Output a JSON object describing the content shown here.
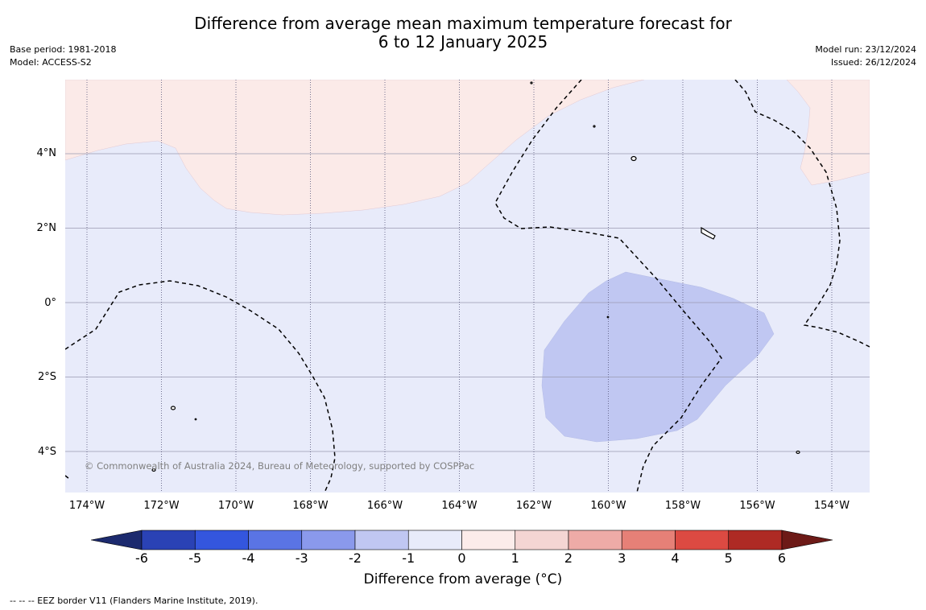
{
  "title": {
    "line1": "Difference from average mean maximum temperature forecast for",
    "line2": "6 to 12 January 2025"
  },
  "meta_left": {
    "base_period": "Base period: 1981-2018",
    "model": "Model: ACCESS-S2"
  },
  "meta_right": {
    "model_run": "Model run: 23/12/2024",
    "issued": "Issued: 26/12/2024"
  },
  "map": {
    "lat_labels": [
      "4°N",
      "2°N",
      "0°",
      "2°S",
      "4°S"
    ],
    "lon_labels": [
      "174°W",
      "172°W",
      "170°W",
      "168°W",
      "166°W",
      "164°W",
      "162°W",
      "160°W",
      "158°W",
      "156°W",
      "154°W"
    ],
    "copyright": "© Commonwealth of Australia 2024, Bureau of Meteorology, supported by COSPPac",
    "colors": {
      "ocean_near_zero": "#e8ebfa",
      "warm_0_1": "#fbeae8",
      "cool_1_2": "#c0c7f2"
    }
  },
  "colorbar": {
    "tick_labels": [
      "-6",
      "-5",
      "-4",
      "-3",
      "-2",
      "-1",
      "0",
      "1",
      "2",
      "3",
      "4",
      "5",
      "6"
    ],
    "colors": [
      "#1c2a6e",
      "#2a42b5",
      "#3456de",
      "#5a74e4",
      "#8a99ec",
      "#c0c7f2",
      "#e8ebfa",
      "#fcecea",
      "#f4d5d3",
      "#eeaba7",
      "#e68077",
      "#dc4a42",
      "#ae2a24",
      "#6d1a17"
    ],
    "label": "Difference from average (°C)"
  },
  "footnote": "--  --  -- EEZ border V11 (Flanders Marine Institute, 2019)."
}
